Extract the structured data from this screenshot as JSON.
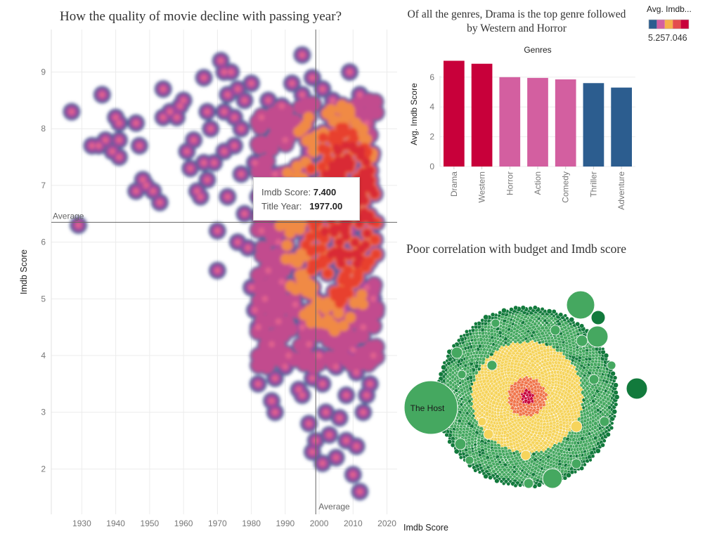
{
  "chart_data": [
    {
      "type": "heatmap",
      "title": "How the quality of movie decline with passing year?",
      "xlabel": "Imdb Score",
      "ylabel": "Imdb Score",
      "xlim": [
        1921,
        2023
      ],
      "ylim": [
        1.2,
        9.75
      ],
      "x_ticks": [
        1930,
        1940,
        1950,
        1960,
        1970,
        1980,
        1990,
        2000,
        2010,
        2020
      ],
      "y_ticks": [
        2,
        3,
        4,
        5,
        6,
        7,
        8,
        9
      ],
      "grid": true,
      "reference_lines": {
        "y_average": 6.35,
        "x_average": 1999,
        "y_label": "Average",
        "x_label": "Average"
      },
      "points": [
        [
          1927,
          8.3
        ],
        [
          1929,
          6.3
        ],
        [
          1933,
          7.7
        ],
        [
          1935,
          7.7
        ],
        [
          1936,
          8.6
        ],
        [
          1937,
          7.8
        ],
        [
          1939,
          7.6
        ],
        [
          1940,
          8.2
        ],
        [
          1941,
          8.1
        ],
        [
          1941,
          7.8
        ],
        [
          1941,
          7.5
        ],
        [
          1946,
          8.1
        ],
        [
          1946,
          6.9
        ],
        [
          1947,
          7.7
        ],
        [
          1948,
          7.1
        ],
        [
          1949,
          7.0
        ],
        [
          1951,
          6.9
        ],
        [
          1953,
          6.7
        ],
        [
          1954,
          8.2
        ],
        [
          1954,
          8.7
        ],
        [
          1956,
          8.3
        ],
        [
          1958,
          8.2
        ],
        [
          1959,
          8.4
        ],
        [
          1960,
          8.5
        ],
        [
          1961,
          7.6
        ],
        [
          1962,
          7.3
        ],
        [
          1963,
          7.8
        ],
        [
          1964,
          6.9
        ],
        [
          1965,
          6.8
        ],
        [
          1966,
          8.9
        ],
        [
          1966,
          7.4
        ],
        [
          1967,
          7.1
        ],
        [
          1967,
          8.3
        ],
        [
          1968,
          8.0
        ],
        [
          1969,
          7.4
        ],
        [
          1970,
          6.2
        ],
        [
          1970,
          5.5
        ],
        [
          1971,
          9.2
        ],
        [
          1972,
          9.0
        ],
        [
          1972,
          8.3
        ],
        [
          1972,
          7.6
        ],
        [
          1973,
          8.6
        ],
        [
          1973,
          6.8
        ],
        [
          1974,
          9.0
        ],
        [
          1975,
          8.2
        ],
        [
          1975,
          7.7
        ],
        [
          1976,
          6.0
        ],
        [
          1976,
          8.7
        ],
        [
          1977,
          8.0
        ],
        [
          1977,
          7.2
        ],
        [
          1978,
          8.5
        ],
        [
          1978,
          6.5
        ],
        [
          1979,
          5.9
        ],
        [
          1980,
          8.8
        ],
        [
          1980,
          5.2
        ],
        [
          1981,
          7.4
        ],
        [
          1981,
          4.8
        ],
        [
          1982,
          6.8
        ],
        [
          1982,
          4.5
        ],
        [
          1982,
          3.5
        ],
        [
          1983,
          8.2
        ],
        [
          1983,
          6.2
        ],
        [
          1984,
          7.0
        ],
        [
          1984,
          5.0
        ],
        [
          1985,
          8.5
        ],
        [
          1985,
          5.5
        ],
        [
          1986,
          3.2
        ],
        [
          1986,
          4.2
        ],
        [
          1987,
          7.2
        ],
        [
          1987,
          3.0
        ],
        [
          1987,
          3.6
        ],
        [
          1988,
          6.0
        ],
        [
          1988,
          4.6
        ],
        [
          1989,
          8.4
        ],
        [
          1989,
          5.3
        ],
        [
          1990,
          3.8
        ],
        [
          1990,
          7.8
        ],
        [
          1991,
          6.5
        ],
        [
          1991,
          4.0
        ],
        [
          1992,
          8.8
        ],
        [
          1992,
          5.6
        ],
        [
          1993,
          4.9
        ],
        [
          1994,
          7.2
        ],
        [
          1994,
          3.4
        ],
        [
          1995,
          9.3
        ],
        [
          1995,
          8.6
        ],
        [
          1995,
          4.5
        ],
        [
          1995,
          3.3
        ],
        [
          1996,
          6.0
        ],
        [
          1996,
          5.2
        ],
        [
          1997,
          2.8
        ],
        [
          1997,
          7.6
        ],
        [
          1997,
          4.2
        ],
        [
          1998,
          2.3
        ],
        [
          1998,
          8.9
        ],
        [
          1998,
          3.6
        ],
        [
          1999,
          2.5
        ],
        [
          1999,
          5.0
        ],
        [
          2000,
          6.5
        ],
        [
          2000,
          4.0
        ],
        [
          2001,
          2.1
        ],
        [
          2001,
          8.7
        ],
        [
          2001,
          3.5
        ],
        [
          2002,
          7.0
        ],
        [
          2002,
          3.0
        ],
        [
          2003,
          5.8
        ],
        [
          2003,
          2.6
        ],
        [
          2004,
          8.5
        ],
        [
          2004,
          4.4
        ],
        [
          2005,
          2.2
        ],
        [
          2005,
          6.6
        ],
        [
          2005,
          3.8
        ],
        [
          2006,
          7.6
        ],
        [
          2006,
          2.9
        ],
        [
          2007,
          8.2
        ],
        [
          2007,
          5.2
        ],
        [
          2007,
          4.8
        ],
        [
          2008,
          2.5
        ],
        [
          2008,
          3.3
        ],
        [
          2009,
          9.0
        ],
        [
          2009,
          6.2
        ],
        [
          2010,
          1.9
        ],
        [
          2010,
          7.8
        ],
        [
          2010,
          4.1
        ],
        [
          2011,
          2.4
        ],
        [
          2011,
          3.7
        ],
        [
          2011,
          5.6
        ],
        [
          2012,
          8.6
        ],
        [
          2012,
          1.6
        ],
        [
          2013,
          3.0
        ],
        [
          2013,
          6.9
        ],
        [
          2013,
          4.5
        ],
        [
          2014,
          8.1
        ],
        [
          2014,
          3.3
        ],
        [
          2014,
          5.2
        ],
        [
          2015,
          7.5
        ],
        [
          2015,
          3.5
        ],
        [
          2015,
          6.3
        ],
        [
          2016,
          4.0
        ],
        [
          2016,
          5.0
        ]
      ],
      "dense_region": {
        "x": [
          1982,
          2017
        ],
        "y": [
          3.8,
          8.5
        ]
      },
      "tooltip": {
        "score_label": "Imdb Score:",
        "score_value": "7.400",
        "year_label": "Title Year:",
        "year_value": "1977.00"
      }
    },
    {
      "type": "bar",
      "title": "Of all the genres, Drama is the top genre followed by Western and Horror",
      "xlabel": "Genres",
      "ylabel": "Avg. Imdb Score",
      "ylim": [
        0,
        7.5
      ],
      "y_ticks": [
        0,
        2,
        4,
        6
      ],
      "categories": [
        "Drama",
        "Western",
        "Horror",
        "Action",
        "Comedy",
        "Thriller",
        "Adventure"
      ],
      "values": [
        7.1,
        6.9,
        6.0,
        5.95,
        5.85,
        5.6,
        5.3
      ],
      "colors": [
        "#c8003a",
        "#c8003a",
        "#d35fa0",
        "#d35fa0",
        "#d35fa0",
        "#2c5d8f",
        "#2c5d8f"
      ]
    },
    {
      "type": "bubble",
      "title": "Poor correlation with budget and Imdb score",
      "labeled_bubble": "The Host",
      "colors": {
        "outer": "#45a860",
        "dark": "#127a3c",
        "middle": "#f6d45c",
        "inner": "#f0744a",
        "core": "#c8003a"
      }
    }
  ],
  "legend": {
    "title": "Avg. Imdb...",
    "value": "5.257.046",
    "colors": [
      "#2c5d8f",
      "#d35fa0",
      "#f6b04a",
      "#e44d4d",
      "#c8003a"
    ]
  }
}
